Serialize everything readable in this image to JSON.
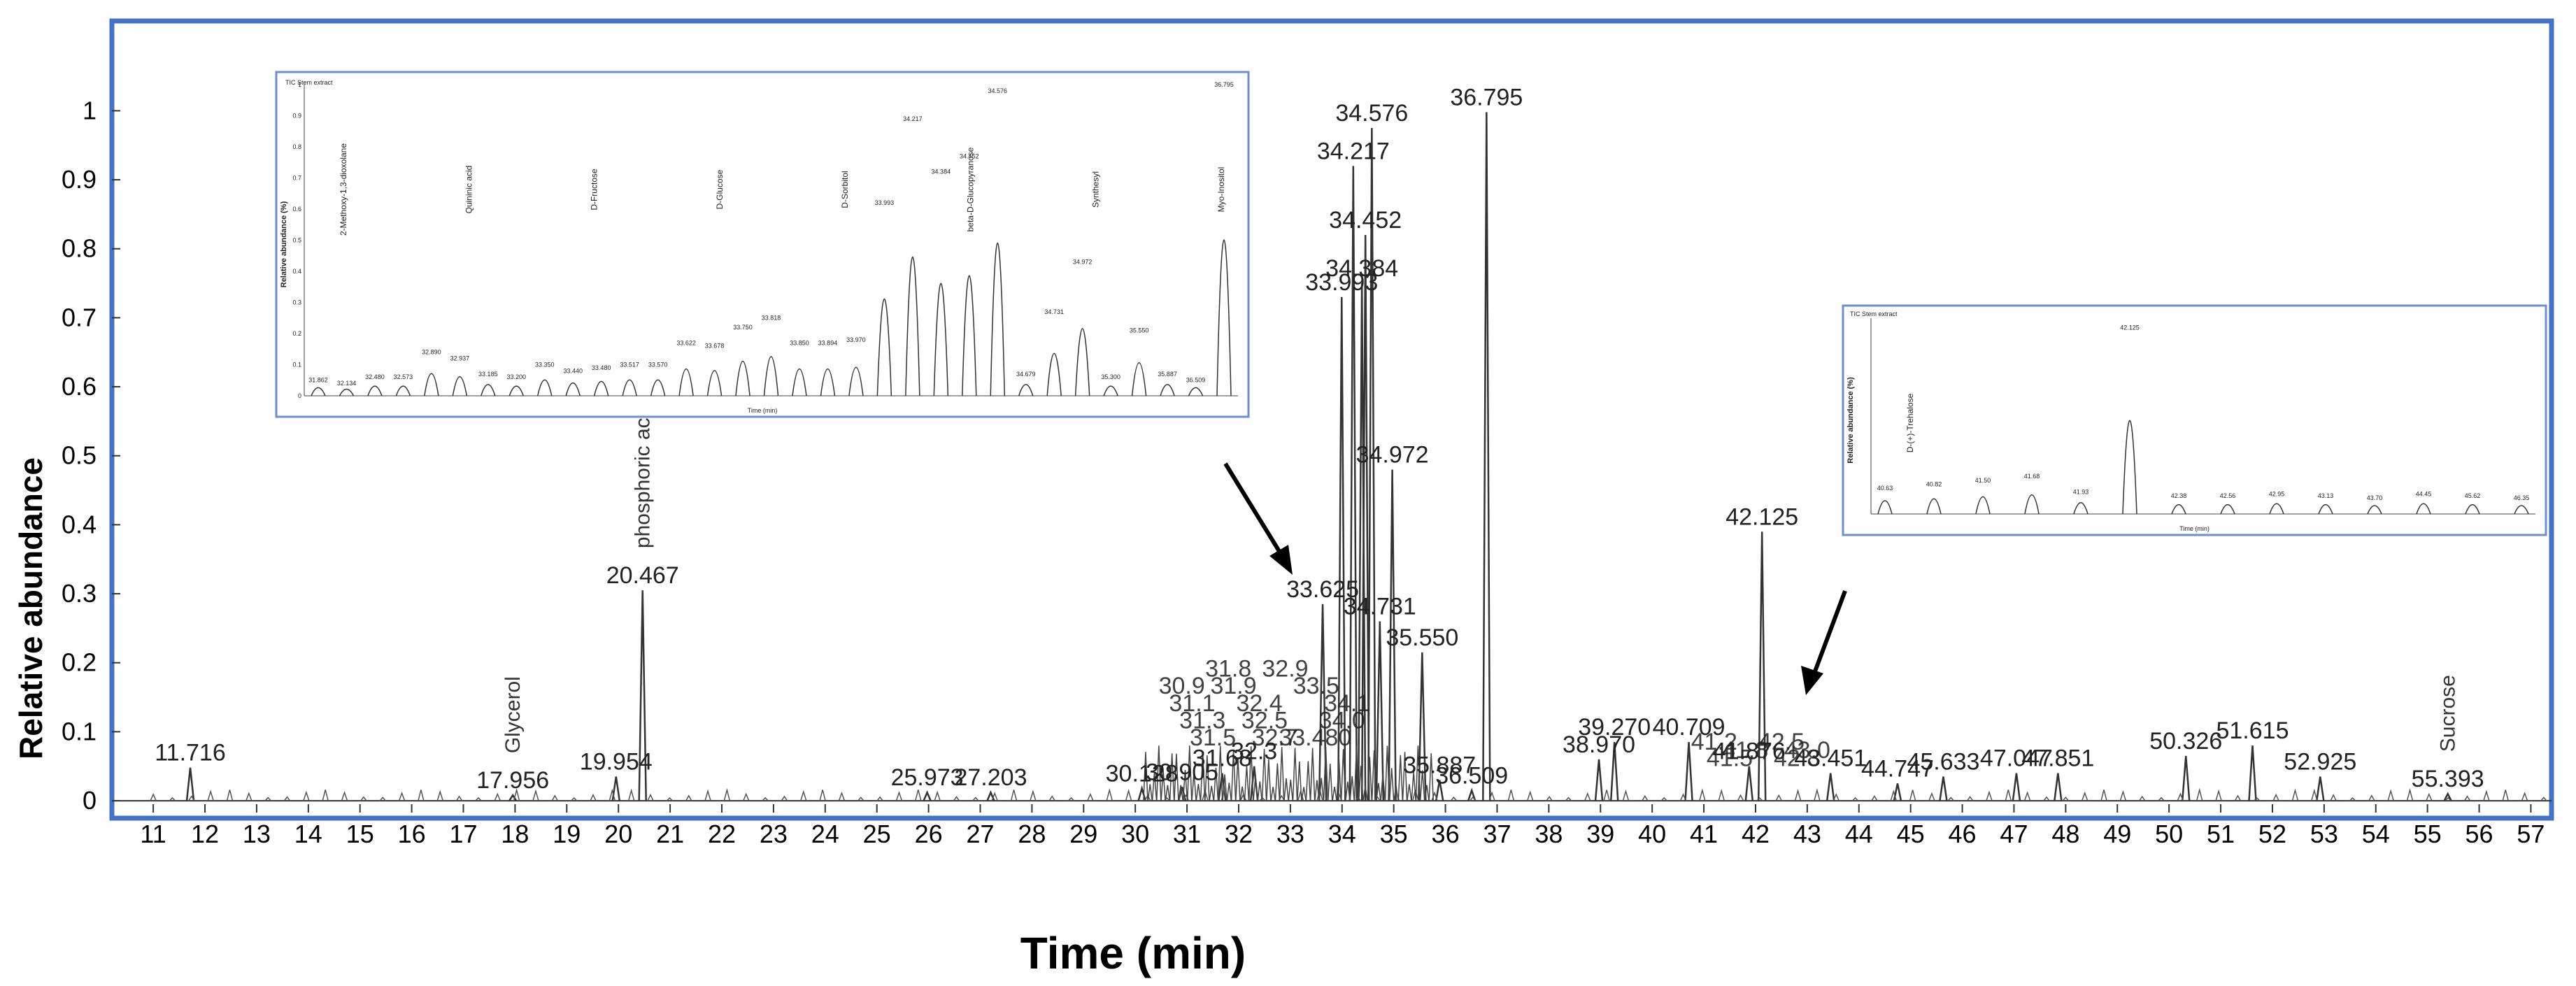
{
  "chart_data": {
    "type": "line",
    "title": "",
    "xlabel": "Time (min)",
    "ylabel": "Relative abundance",
    "xlim": [
      10.2,
      57.4
    ],
    "ylim": [
      -0.005,
      1.12
    ],
    "x_ticks": [
      "11",
      "12",
      "13",
      "14",
      "15",
      "16",
      "17",
      "18",
      "19",
      "20",
      "21",
      "22",
      "23",
      "24",
      "25",
      "26",
      "27",
      "28",
      "29",
      "30",
      "31",
      "32",
      "33",
      "34",
      "35",
      "36",
      "37",
      "38",
      "39",
      "40",
      "41",
      "42",
      "43",
      "44",
      "45",
      "46",
      "47",
      "48",
      "49",
      "50",
      "51",
      "52",
      "53",
      "54",
      "55",
      "56",
      "57"
    ],
    "y_ticks": [
      "0",
      "0.1",
      "0.2",
      "0.3",
      "0.4",
      "0.5",
      "0.6",
      "0.7",
      "0.8",
      "0.9",
      "1"
    ],
    "grid": false,
    "peaks": [
      {
        "x": 11.716,
        "y": 0.048,
        "label": "11.716"
      },
      {
        "x": 17.956,
        "y": 0.008,
        "label": "17.956"
      },
      {
        "x": 19.954,
        "y": 0.035,
        "label": "19.954"
      },
      {
        "x": 20.467,
        "y": 0.305,
        "label": "20.467"
      },
      {
        "x": 25.973,
        "y": 0.012,
        "label": "25.973"
      },
      {
        "x": 27.203,
        "y": 0.012,
        "label": "27.203"
      },
      {
        "x": 30.128,
        "y": 0.018,
        "label": "30.128"
      },
      {
        "x": 30.905,
        "y": 0.02,
        "label": "30.905"
      },
      {
        "x": 31.68,
        "y": 0.04,
        "label": "31.68"
      },
      {
        "x": 32.3,
        "y": 0.05,
        "label": "32.3"
      },
      {
        "x": 33.625,
        "y": 0.285,
        "label": "33.625"
      },
      {
        "x": 33.993,
        "y": 0.73,
        "label": "33.993"
      },
      {
        "x": 34.217,
        "y": 0.92,
        "label": "34.217"
      },
      {
        "x": 34.384,
        "y": 0.75,
        "label": "34.384"
      },
      {
        "x": 34.452,
        "y": 0.82,
        "label": "34.452"
      },
      {
        "x": 34.576,
        "y": 0.975,
        "label": "34.576"
      },
      {
        "x": 34.731,
        "y": 0.26,
        "label": "34.731"
      },
      {
        "x": 34.972,
        "y": 0.48,
        "label": "34.972"
      },
      {
        "x": 35.55,
        "y": 0.215,
        "label": "35.550"
      },
      {
        "x": 35.887,
        "y": 0.03,
        "label": "35.887"
      },
      {
        "x": 36.509,
        "y": 0.015,
        "label": "36.509"
      },
      {
        "x": 36.795,
        "y": 0.998,
        "label": "36.795"
      },
      {
        "x": 38.97,
        "y": 0.06,
        "label": "38.970"
      },
      {
        "x": 39.27,
        "y": 0.085,
        "label": "39.270"
      },
      {
        "x": 40.709,
        "y": 0.085,
        "label": "40.709"
      },
      {
        "x": 41.876,
        "y": 0.05,
        "label": "41.876"
      },
      {
        "x": 42.125,
        "y": 0.39,
        "label": "42.125"
      },
      {
        "x": 43.451,
        "y": 0.04,
        "label": "43.451"
      },
      {
        "x": 44.747,
        "y": 0.025,
        "label": "44.747"
      },
      {
        "x": 45.633,
        "y": 0.035,
        "label": "45.633"
      },
      {
        "x": 47.047,
        "y": 0.04,
        "label": "47.047"
      },
      {
        "x": 47.851,
        "y": 0.04,
        "label": "47.851"
      },
      {
        "x": 50.326,
        "y": 0.065,
        "label": "50.326"
      },
      {
        "x": 51.615,
        "y": 0.08,
        "label": "51.615"
      },
      {
        "x": 52.925,
        "y": 0.035,
        "label": "52.925"
      },
      {
        "x": 55.393,
        "y": 0.01,
        "label": "55.393"
      }
    ],
    "clutter_labels": [
      "33.480",
      "34.0",
      "34.1",
      "33.5",
      "32.9",
      "32.7",
      "32.5",
      "32.4",
      "31.9",
      "31.8",
      "31.5",
      "31.3",
      "31.1",
      "30.9",
      "41.2",
      "41.5",
      "41.8",
      "42.5",
      "42.8",
      "43.0"
    ],
    "annotations": [
      {
        "x": 17.956,
        "text": "Glycerol"
      },
      {
        "x": 20.467,
        "text": "phosphoric acid"
      },
      {
        "x": 55.393,
        "text": "Sucrose"
      }
    ],
    "insets": [
      {
        "header": "TIC Stem extract",
        "ylabel": "Relative abundance (%)",
        "xlabel": "Time (min)",
        "y_ticks": [
          "0",
          "0.1",
          "0.2",
          "0.3",
          "0.4",
          "0.5",
          "0.6",
          "0.7",
          "0.8",
          "0.9",
          "1"
        ],
        "peaks": [
          {
            "label": "31.862",
            "h": 0.03
          },
          {
            "label": "32.134",
            "h": 0.02
          },
          {
            "label": "32.480",
            "h": 0.04
          },
          {
            "label": "32.573",
            "h": 0.04
          },
          {
            "label": "32.890",
            "h": 0.12
          },
          {
            "label": "32.937",
            "h": 0.1
          },
          {
            "label": "33.185",
            "h": 0.05
          },
          {
            "label": "33.200",
            "h": 0.04
          },
          {
            "label": "33.350",
            "h": 0.08
          },
          {
            "label": "33.440",
            "h": 0.06
          },
          {
            "label": "33.480",
            "h": 0.07
          },
          {
            "label": "33.517",
            "h": 0.08
          },
          {
            "label": "33.570",
            "h": 0.08
          },
          {
            "label": "33.622",
            "h": 0.15
          },
          {
            "label": "33.678",
            "h": 0.14
          },
          {
            "label": "33.750",
            "h": 0.2
          },
          {
            "label": "33.818",
            "h": 0.23
          },
          {
            "label": "33.850",
            "h": 0.15
          },
          {
            "label": "33.894",
            "h": 0.15
          },
          {
            "label": "33.970",
            "h": 0.16
          },
          {
            "label": "33.993",
            "h": 0.6
          },
          {
            "label": "34.217",
            "h": 0.87
          },
          {
            "label": "34.384",
            "h": 0.7
          },
          {
            "label": "34.452",
            "h": 0.75
          },
          {
            "label": "34.576",
            "h": 0.96
          },
          {
            "label": "34.679",
            "h": 0.05
          },
          {
            "label": "34.731",
            "h": 0.25
          },
          {
            "label": "34.972",
            "h": 0.41
          },
          {
            "label": "35.300",
            "h": 0.04
          },
          {
            "label": "35.550",
            "h": 0.19
          },
          {
            "label": "35.887",
            "h": 0.05
          },
          {
            "label": "36.509",
            "h": 0.03
          },
          {
            "label": "36.795",
            "h": 0.98
          }
        ],
        "compound_labels": [
          "2-Methoxy-1,3-dioxolane",
          "Quininic acid",
          "D-Fructose",
          "D-Glucose",
          "D-Sorbitol",
          "beta-D-Glucopyranose",
          "Synthesyl",
          "Myo-Inositol"
        ]
      },
      {
        "header": "TIC Stem extract",
        "ylabel": "Relative abundance (%)",
        "xlabel": "Time (min)",
        "peaks": [
          {
            "label": "40.63",
            "h": 0.1
          },
          {
            "label": "40.82",
            "h": 0.12
          },
          {
            "label": "41.50",
            "h": 0.14
          },
          {
            "label": "41.68",
            "h": 0.16
          },
          {
            "label": "41.93",
            "h": 0.08
          },
          {
            "label": "42.125",
            "h": 0.92
          },
          {
            "label": "42.38",
            "h": 0.06
          },
          {
            "label": "42.56",
            "h": 0.06
          },
          {
            "label": "42.95",
            "h": 0.07
          },
          {
            "label": "43.13",
            "h": 0.06
          },
          {
            "label": "43.70",
            "h": 0.05
          },
          {
            "label": "44.45",
            "h": 0.07
          },
          {
            "label": "45.62",
            "h": 0.06
          },
          {
            "label": "46.35",
            "h": 0.05
          }
        ],
        "compound_labels": [
          "D-(+)-Trehalose"
        ]
      }
    ]
  }
}
